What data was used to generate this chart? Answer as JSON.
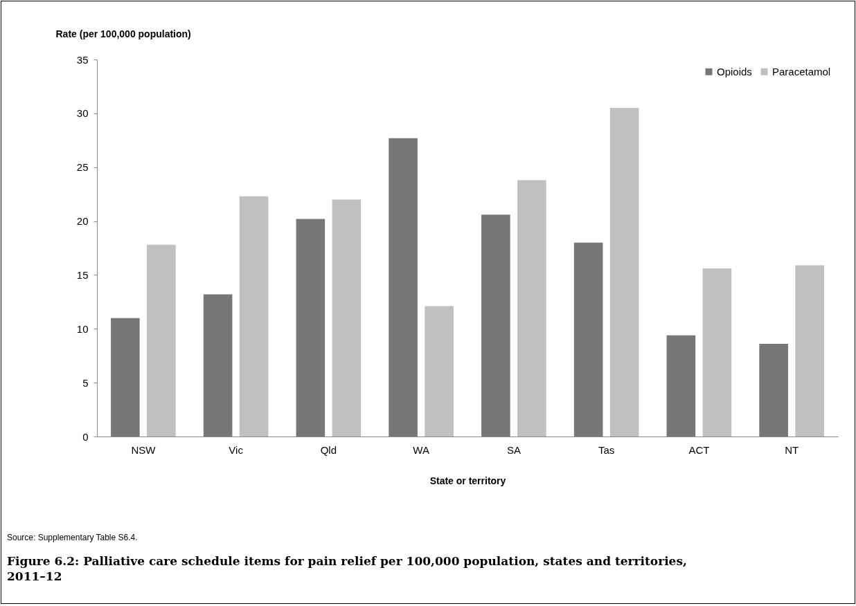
{
  "chart_data": {
    "type": "bar",
    "title": "Figure 6.2: Palliative care schedule items for pain relief per 100,000 population, states and territories, 2011–12",
    "xlabel": "State or territory",
    "ylabel": "Rate (per 100,000 population)",
    "categories": [
      "NSW",
      "Vic",
      "Qld",
      "WA",
      "SA",
      "Tas",
      "ACT",
      "NT"
    ],
    "series": [
      {
        "name": "Opioids",
        "color": "#777777",
        "values": [
          11.0,
          13.2,
          20.2,
          27.7,
          20.6,
          18.0,
          9.4,
          8.6
        ]
      },
      {
        "name": "Paracetamol",
        "color": "#c0c0c0",
        "values": [
          17.8,
          22.3,
          22.0,
          12.1,
          23.8,
          30.5,
          15.6,
          15.9
        ]
      }
    ],
    "ylim": [
      0,
      35
    ],
    "yticks": [
      0,
      5,
      10,
      15,
      20,
      25,
      30,
      35
    ],
    "legend": "top right",
    "annotations": [
      "Source: Supplementary Table S6.4."
    ]
  }
}
